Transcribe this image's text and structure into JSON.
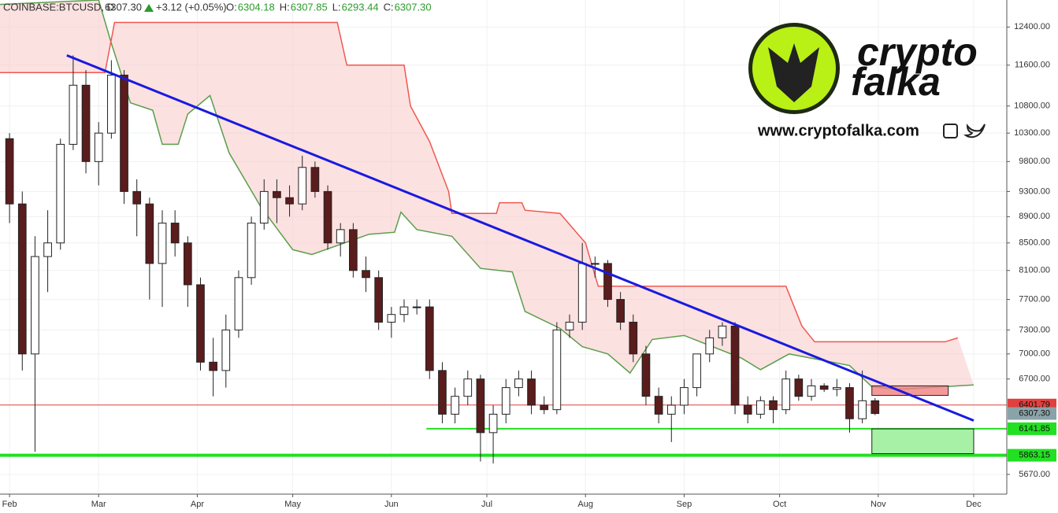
{
  "chart_data": {
    "type": "candlestick",
    "header": {
      "symbol": "COINBASE:BTCUSD, D",
      "price": "6307.30",
      "change": "+3.12 (+0.05%)",
      "ohlc": [
        {
          "label": "O:",
          "value": "6304.18"
        },
        {
          "label": "H:",
          "value": "6307.85"
        },
        {
          "label": "L:",
          "value": "6293.44"
        },
        {
          "label": "C:",
          "value": "6307.30"
        }
      ]
    },
    "logo": {
      "line1": "crypto",
      "line2": "falka",
      "url": "www.cryptofalka.com"
    },
    "log_scale": true,
    "grid": true,
    "up_color": "#ffffff",
    "down_color": "#5a1c1c",
    "xlim": [
      -3,
      313.4
    ],
    "xticks": [
      {
        "value": 0,
        "label": "Feb"
      },
      {
        "value": 28,
        "label": "Mar"
      },
      {
        "value": 59,
        "label": "Apr"
      },
      {
        "value": 89,
        "label": "May"
      },
      {
        "value": 120,
        "label": "Jun"
      },
      {
        "value": 150,
        "label": "Jul"
      },
      {
        "value": 181,
        "label": "Aug"
      },
      {
        "value": 212,
        "label": "Sep"
      },
      {
        "value": 242,
        "label": "Oct"
      },
      {
        "value": 273,
        "label": "Nov"
      },
      {
        "value": 303,
        "label": "Dec"
      }
    ],
    "ylim": [
      5478,
      13000
    ],
    "yticks": [
      {
        "value": 12400,
        "label": "12400.00"
      },
      {
        "value": 11600,
        "label": "11600.00"
      },
      {
        "value": 10800,
        "label": "10800.00"
      },
      {
        "value": 10300,
        "label": "10300.00"
      },
      {
        "value": 9800,
        "label": "9800.00"
      },
      {
        "value": 9300,
        "label": "9300.00"
      },
      {
        "value": 8900,
        "label": "8900.00"
      },
      {
        "value": 8500,
        "label": "8500.00"
      },
      {
        "value": 8100,
        "label": "8100.00"
      },
      {
        "value": 7700,
        "label": "7700.00"
      },
      {
        "value": 7300,
        "label": "7300.00"
      },
      {
        "value": 7000,
        "label": "7000.00"
      },
      {
        "value": 6700,
        "label": "6700.00"
      },
      {
        "value": 5670,
        "label": "5670.00"
      }
    ],
    "candles": {
      "x": [
        0,
        4,
        8,
        12,
        16,
        20,
        24,
        28,
        32,
        36,
        40,
        44,
        48,
        52,
        56,
        60,
        64,
        68,
        72,
        76,
        80,
        84,
        88,
        92,
        96,
        100,
        104,
        108,
        112,
        116,
        120,
        124,
        128,
        132,
        136,
        140,
        144,
        148,
        152,
        156,
        160,
        164,
        168,
        172,
        176,
        180,
        184,
        188,
        192,
        196,
        200,
        204,
        208,
        212,
        216,
        220,
        224,
        228,
        232,
        236,
        240,
        244,
        248,
        252,
        256,
        260,
        264,
        268,
        272
      ],
      "open": [
        10200,
        9100,
        7000,
        8300,
        8500,
        10100,
        11200,
        9800,
        10300,
        11400,
        9300,
        9100,
        8200,
        8800,
        8500,
        7900,
        6900,
        6800,
        7300,
        8000,
        8800,
        9300,
        9200,
        9100,
        9700,
        9300,
        8500,
        8700,
        8100,
        8000,
        7400,
        7500,
        7600,
        7600,
        6800,
        6300,
        6500,
        6700,
        6100,
        6300,
        6600,
        6700,
        6400,
        6350,
        7300,
        7400,
        8200,
        8200,
        7700,
        7400,
        7000,
        6500,
        6300,
        6400,
        6600,
        7000,
        7200,
        7350,
        6400,
        6300,
        6450,
        6350,
        6700,
        6500,
        6620,
        6580,
        6600,
        6250,
        6450
      ],
      "high": [
        10300,
        9300,
        8600,
        9000,
        10200,
        11800,
        11500,
        10500,
        11700,
        11500,
        9500,
        9200,
        9000,
        9000,
        8600,
        8000,
        7200,
        7500,
        8100,
        8900,
        9500,
        9500,
        9400,
        9900,
        9800,
        9400,
        8800,
        8800,
        8300,
        8100,
        7600,
        7700,
        7700,
        7700,
        6900,
        6600,
        6800,
        6750,
        6400,
        6700,
        6800,
        6800,
        6500,
        7400,
        7500,
        8500,
        8300,
        8250,
        7800,
        7500,
        7100,
        6600,
        6500,
        6700,
        7000,
        7300,
        7400,
        7400,
        6500,
        6500,
        6500,
        6800,
        6750,
        6700,
        6650,
        6700,
        6650,
        6800,
        6480
      ],
      "low": [
        8800,
        6800,
        5900,
        7800,
        8400,
        10000,
        9600,
        9400,
        10200,
        9100,
        8600,
        7700,
        7600,
        8300,
        7600,
        6800,
        6500,
        6600,
        7200,
        7900,
        8700,
        8800,
        8900,
        9000,
        9200,
        8400,
        8300,
        8000,
        7800,
        7300,
        7200,
        7400,
        7500,
        6700,
        6200,
        6200,
        6400,
        5800,
        5780,
        6200,
        6500,
        6300,
        6300,
        6300,
        7200,
        7300,
        8000,
        7600,
        7300,
        6900,
        6400,
        6200,
        6000,
        6300,
        6500,
        6900,
        7100,
        6300,
        6200,
        6250,
        6200,
        6300,
        6450,
        6450,
        6550,
        6500,
        6100,
        6200,
        6290
      ],
      "close": [
        9100,
        7000,
        8300,
        8500,
        10100,
        11200,
        9800,
        10300,
        11400,
        9300,
        9100,
        8200,
        8800,
        8500,
        7900,
        6900,
        6800,
        7300,
        8000,
        8800,
        9300,
        9200,
        9100,
        9700,
        9300,
        8500,
        8700,
        8100,
        8000,
        7400,
        7500,
        7600,
        7600,
        6800,
        6300,
        6500,
        6700,
        6100,
        6300,
        6600,
        6700,
        6400,
        6350,
        7300,
        7400,
        8200,
        8200,
        7700,
        7400,
        7000,
        6500,
        6300,
        6400,
        6600,
        7000,
        7200,
        7350,
        6400,
        6300,
        6450,
        6350,
        6700,
        6500,
        6620,
        6580,
        6600,
        6250,
        6450,
        6307.3
      ]
    },
    "cloud": {
      "fill": "#f9c8c8",
      "span_a": {
        "color": "#5a9e4b",
        "x": [
          -3,
          28,
          32,
          38,
          45,
          48,
          53,
          56,
          63,
          69,
          79,
          89,
          95,
          113,
          121,
          123,
          128,
          139,
          148,
          158,
          162,
          173,
          180,
          188,
          195,
          202,
          212,
          230,
          236,
          245,
          264,
          271,
          279,
          303
        ],
        "values": [
          12900,
          13000,
          12050,
          10860,
          10720,
          10100,
          10100,
          10650,
          11000,
          9950,
          9050,
          8400,
          8330,
          8630,
          8660,
          8970,
          8700,
          8600,
          8130,
          8080,
          7540,
          7320,
          7090,
          7000,
          6770,
          7180,
          7230,
          6950,
          6810,
          7000,
          6860,
          6610,
          6580,
          6630
        ]
      },
      "span_b": {
        "color": "#f0584f",
        "x": [
          -3,
          30,
          33,
          103,
          106,
          124,
          126,
          132,
          138,
          139,
          153,
          154,
          161,
          162,
          173,
          181,
          185,
          244,
          249,
          253,
          294,
          298
        ],
        "values": [
          11450,
          11450,
          12500,
          12500,
          11600,
          11600,
          10800,
          10150,
          9300,
          8950,
          8950,
          9120,
          9120,
          9000,
          8950,
          8500,
          7880,
          7880,
          7350,
          7150,
          7150,
          7200
        ]
      }
    },
    "trendline": {
      "color": "#1a1adf",
      "x": [
        18,
        303
      ],
      "values": [
        11800,
        6230
      ]
    },
    "zones": [
      {
        "color": "#f08080",
        "x": [
          271,
          295
        ],
        "range": [
          6510,
          6620
        ]
      },
      {
        "color": "#90ee90",
        "x": [
          271,
          303
        ],
        "range": [
          5880,
          6140
        ]
      }
    ],
    "price_lines": [
      {
        "value": 6401.79,
        "label": "6401.79",
        "color": "#e0403f",
        "x_start": -3,
        "width": 1
      },
      {
        "value": 6307.3,
        "label": "6307.30",
        "color": "#8aa3a8",
        "x_start": null,
        "width": 0
      },
      {
        "value": 6141.85,
        "label": "6141.85",
        "color": "#22e022",
        "x_start": 131,
        "width": 2
      },
      {
        "value": 5863.15,
        "label": "5863.15",
        "color": "#22e022",
        "x_start": -3,
        "width": 4
      }
    ]
  }
}
